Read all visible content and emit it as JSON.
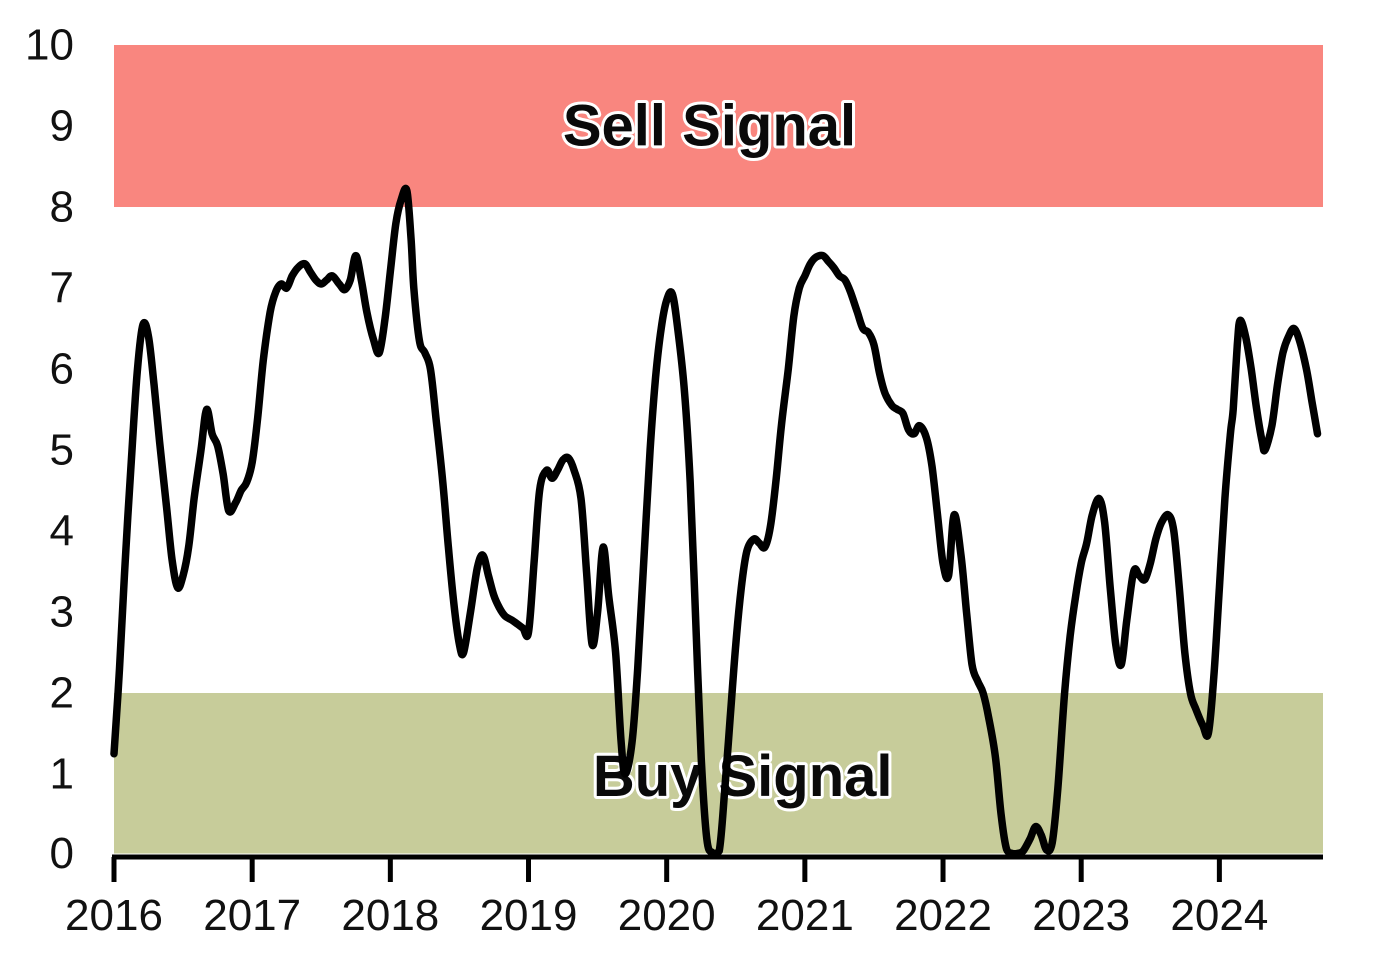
{
  "chart_data": {
    "type": "line",
    "title": "",
    "xlabel": "",
    "ylabel": "",
    "grid": false,
    "legend": null,
    "x_axis": {
      "range": [
        2016,
        2024.75
      ],
      "ticks": [
        {
          "label": "2016",
          "value": 2016
        },
        {
          "label": "2017",
          "value": 2017
        },
        {
          "label": "2018",
          "value": 2018
        },
        {
          "label": "2019",
          "value": 2019
        },
        {
          "label": "2020",
          "value": 2020
        },
        {
          "label": "2021",
          "value": 2021
        },
        {
          "label": "2022",
          "value": 2022
        },
        {
          "label": "2023",
          "value": 2023
        },
        {
          "label": "2024",
          "value": 2024
        }
      ]
    },
    "y_axis": {
      "range": [
        0,
        10
      ],
      "ticks": [
        {
          "label": "0",
          "value": 0
        },
        {
          "label": "1",
          "value": 1
        },
        {
          "label": "2",
          "value": 2
        },
        {
          "label": "3",
          "value": 3
        },
        {
          "label": "4",
          "value": 4
        },
        {
          "label": "5",
          "value": 5
        },
        {
          "label": "6",
          "value": 6
        },
        {
          "label": "7",
          "value": 7
        },
        {
          "label": "8",
          "value": 8
        },
        {
          "label": "9",
          "value": 9
        },
        {
          "label": "10",
          "value": 10
        }
      ]
    },
    "bands": [
      {
        "id": "sell",
        "label": "Sell Signal",
        "from": 8,
        "to": 10,
        "color": "#f9867f",
        "label_x": 2020.31,
        "label_y": 9.0
      },
      {
        "id": "buy",
        "label": "Buy Signal",
        "from": 0,
        "to": 2,
        "color": "#c7cc9a",
        "label_x": 2020.55,
        "label_y": 0.97
      }
    ],
    "series": [
      {
        "name": "indicator",
        "color": "#000000",
        "points": [
          [
            2016.0,
            1.25
          ],
          [
            2016.04,
            2.3
          ],
          [
            2016.08,
            3.6
          ],
          [
            2016.13,
            5.0
          ],
          [
            2016.17,
            6.0
          ],
          [
            2016.21,
            6.55
          ],
          [
            2016.25,
            6.4
          ],
          [
            2016.29,
            5.8
          ],
          [
            2016.33,
            5.1
          ],
          [
            2016.38,
            4.3
          ],
          [
            2016.42,
            3.65
          ],
          [
            2016.46,
            3.3
          ],
          [
            2016.5,
            3.45
          ],
          [
            2016.54,
            3.8
          ],
          [
            2016.58,
            4.4
          ],
          [
            2016.63,
            5.0
          ],
          [
            2016.67,
            5.5
          ],
          [
            2016.71,
            5.2
          ],
          [
            2016.75,
            5.05
          ],
          [
            2016.79,
            4.7
          ],
          [
            2016.83,
            4.25
          ],
          [
            2016.88,
            4.35
          ],
          [
            2016.92,
            4.5
          ],
          [
            2016.96,
            4.6
          ],
          [
            2017.0,
            4.85
          ],
          [
            2017.04,
            5.4
          ],
          [
            2017.08,
            6.1
          ],
          [
            2017.13,
            6.7
          ],
          [
            2017.17,
            6.95
          ],
          [
            2017.21,
            7.05
          ],
          [
            2017.25,
            7.0
          ],
          [
            2017.29,
            7.15
          ],
          [
            2017.33,
            7.25
          ],
          [
            2017.38,
            7.3
          ],
          [
            2017.42,
            7.2
          ],
          [
            2017.46,
            7.1
          ],
          [
            2017.5,
            7.05
          ],
          [
            2017.54,
            7.1
          ],
          [
            2017.58,
            7.15
          ],
          [
            2017.63,
            7.05
          ],
          [
            2017.67,
            6.98
          ],
          [
            2017.71,
            7.1
          ],
          [
            2017.75,
            7.4
          ],
          [
            2017.79,
            7.1
          ],
          [
            2017.83,
            6.7
          ],
          [
            2017.88,
            6.35
          ],
          [
            2017.92,
            6.2
          ],
          [
            2017.96,
            6.6
          ],
          [
            2018.0,
            7.2
          ],
          [
            2018.04,
            7.8
          ],
          [
            2018.08,
            8.1
          ],
          [
            2018.12,
            8.2
          ],
          [
            2018.15,
            7.6
          ],
          [
            2018.17,
            7.0
          ],
          [
            2018.21,
            6.35
          ],
          [
            2018.25,
            6.2
          ],
          [
            2018.29,
            6.0
          ],
          [
            2018.33,
            5.4
          ],
          [
            2018.38,
            4.6
          ],
          [
            2018.42,
            3.8
          ],
          [
            2018.46,
            3.1
          ],
          [
            2018.5,
            2.6
          ],
          [
            2018.53,
            2.5
          ],
          [
            2018.58,
            3.0
          ],
          [
            2018.63,
            3.55
          ],
          [
            2018.67,
            3.7
          ],
          [
            2018.71,
            3.45
          ],
          [
            2018.75,
            3.2
          ],
          [
            2018.79,
            3.05
          ],
          [
            2018.83,
            2.95
          ],
          [
            2018.88,
            2.9
          ],
          [
            2018.92,
            2.85
          ],
          [
            2018.96,
            2.8
          ],
          [
            2019.0,
            2.75
          ],
          [
            2019.04,
            3.6
          ],
          [
            2019.08,
            4.5
          ],
          [
            2019.13,
            4.75
          ],
          [
            2019.17,
            4.65
          ],
          [
            2019.21,
            4.75
          ],
          [
            2019.25,
            4.88
          ],
          [
            2019.29,
            4.9
          ],
          [
            2019.33,
            4.75
          ],
          [
            2019.38,
            4.4
          ],
          [
            2019.42,
            3.5
          ],
          [
            2019.46,
            2.6
          ],
          [
            2019.5,
            3.0
          ],
          [
            2019.54,
            3.8
          ],
          [
            2019.58,
            3.2
          ],
          [
            2019.63,
            2.5
          ],
          [
            2019.67,
            1.4
          ],
          [
            2019.7,
            1.0
          ],
          [
            2019.75,
            1.4
          ],
          [
            2019.79,
            2.3
          ],
          [
            2019.83,
            3.5
          ],
          [
            2019.88,
            5.0
          ],
          [
            2019.92,
            5.9
          ],
          [
            2019.96,
            6.5
          ],
          [
            2020.0,
            6.85
          ],
          [
            2020.04,
            6.93
          ],
          [
            2020.08,
            6.5
          ],
          [
            2020.13,
            5.7
          ],
          [
            2020.17,
            4.6
          ],
          [
            2020.21,
            2.9
          ],
          [
            2020.25,
            1.2
          ],
          [
            2020.29,
            0.2
          ],
          [
            2020.33,
            0.03
          ],
          [
            2020.38,
            0.05
          ],
          [
            2020.42,
            0.8
          ],
          [
            2020.46,
            1.7
          ],
          [
            2020.5,
            2.6
          ],
          [
            2020.54,
            3.3
          ],
          [
            2020.58,
            3.75
          ],
          [
            2020.63,
            3.9
          ],
          [
            2020.67,
            3.85
          ],
          [
            2020.71,
            3.8
          ],
          [
            2020.75,
            4.05
          ],
          [
            2020.79,
            4.6
          ],
          [
            2020.83,
            5.3
          ],
          [
            2020.88,
            6.0
          ],
          [
            2020.92,
            6.65
          ],
          [
            2020.96,
            7.0
          ],
          [
            2021.0,
            7.15
          ],
          [
            2021.04,
            7.3
          ],
          [
            2021.08,
            7.38
          ],
          [
            2021.13,
            7.4
          ],
          [
            2021.17,
            7.33
          ],
          [
            2021.21,
            7.25
          ],
          [
            2021.25,
            7.15
          ],
          [
            2021.29,
            7.1
          ],
          [
            2021.33,
            6.95
          ],
          [
            2021.38,
            6.7
          ],
          [
            2021.42,
            6.5
          ],
          [
            2021.46,
            6.45
          ],
          [
            2021.5,
            6.3
          ],
          [
            2021.54,
            5.95
          ],
          [
            2021.58,
            5.7
          ],
          [
            2021.63,
            5.55
          ],
          [
            2021.67,
            5.5
          ],
          [
            2021.71,
            5.45
          ],
          [
            2021.75,
            5.25
          ],
          [
            2021.79,
            5.2
          ],
          [
            2021.83,
            5.3
          ],
          [
            2021.88,
            5.15
          ],
          [
            2021.92,
            4.8
          ],
          [
            2021.96,
            4.2
          ],
          [
            2022.0,
            3.6
          ],
          [
            2022.04,
            3.45
          ],
          [
            2022.08,
            4.2
          ],
          [
            2022.13,
            3.7
          ],
          [
            2022.17,
            3.0
          ],
          [
            2022.21,
            2.35
          ],
          [
            2022.25,
            2.15
          ],
          [
            2022.29,
            2.0
          ],
          [
            2022.33,
            1.7
          ],
          [
            2022.38,
            1.2
          ],
          [
            2022.42,
            0.5
          ],
          [
            2022.46,
            0.07
          ],
          [
            2022.5,
            0.02
          ],
          [
            2022.54,
            0.02
          ],
          [
            2022.58,
            0.05
          ],
          [
            2022.63,
            0.2
          ],
          [
            2022.67,
            0.35
          ],
          [
            2022.71,
            0.25
          ],
          [
            2022.75,
            0.06
          ],
          [
            2022.79,
            0.15
          ],
          [
            2022.83,
            0.8
          ],
          [
            2022.88,
            2.0
          ],
          [
            2022.92,
            2.7
          ],
          [
            2022.96,
            3.2
          ],
          [
            2023.0,
            3.6
          ],
          [
            2023.04,
            3.85
          ],
          [
            2023.08,
            4.2
          ],
          [
            2023.13,
            4.4
          ],
          [
            2023.17,
            4.1
          ],
          [
            2023.21,
            3.3
          ],
          [
            2023.25,
            2.6
          ],
          [
            2023.29,
            2.35
          ],
          [
            2023.33,
            2.9
          ],
          [
            2023.38,
            3.5
          ],
          [
            2023.42,
            3.45
          ],
          [
            2023.46,
            3.4
          ],
          [
            2023.5,
            3.6
          ],
          [
            2023.54,
            3.9
          ],
          [
            2023.58,
            4.1
          ],
          [
            2023.63,
            4.2
          ],
          [
            2023.67,
            4.0
          ],
          [
            2023.71,
            3.3
          ],
          [
            2023.75,
            2.5
          ],
          [
            2023.79,
            2.0
          ],
          [
            2023.83,
            1.8
          ],
          [
            2023.88,
            1.6
          ],
          [
            2023.92,
            1.5
          ],
          [
            2023.96,
            2.2
          ],
          [
            2024.0,
            3.3
          ],
          [
            2024.04,
            4.4
          ],
          [
            2024.08,
            5.2
          ],
          [
            2024.1,
            5.5
          ],
          [
            2024.13,
            6.3
          ],
          [
            2024.15,
            6.6
          ],
          [
            2024.19,
            6.4
          ],
          [
            2024.23,
            6.0
          ],
          [
            2024.27,
            5.5
          ],
          [
            2024.31,
            5.1
          ],
          [
            2024.33,
            5.0
          ],
          [
            2024.38,
            5.3
          ],
          [
            2024.42,
            5.8
          ],
          [
            2024.46,
            6.2
          ],
          [
            2024.5,
            6.4
          ],
          [
            2024.54,
            6.5
          ],
          [
            2024.58,
            6.35
          ],
          [
            2024.63,
            6.0
          ],
          [
            2024.67,
            5.6
          ],
          [
            2024.71,
            5.2
          ]
        ]
      }
    ]
  }
}
